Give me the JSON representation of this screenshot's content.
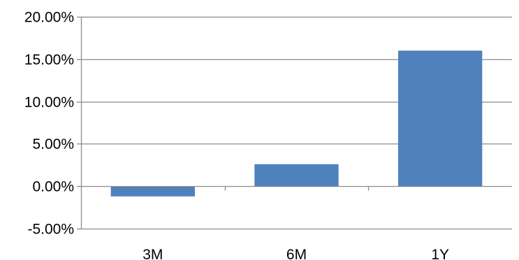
{
  "chart_data": {
    "type": "bar",
    "categories": [
      "3M",
      "6M",
      "1Y"
    ],
    "values": [
      -1.2,
      2.6,
      16.0
    ],
    "ylim": [
      -5,
      20
    ],
    "yticks": [
      -5,
      0,
      5,
      10,
      15,
      20
    ],
    "ytick_labels": [
      "-5.00%",
      "0.00%",
      "5.00%",
      "10.00%",
      "15.00%",
      "20.00%"
    ],
    "grid": true,
    "legend": "none",
    "bar_color": "#4F81BD",
    "grid_color": "#8C8C8C"
  }
}
